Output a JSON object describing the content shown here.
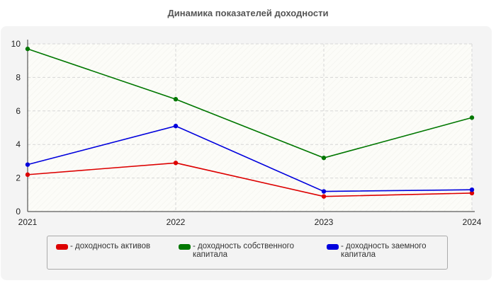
{
  "chart_data": {
    "type": "line",
    "title": "Динамика показателей доходности",
    "xlabel": "",
    "ylabel": "",
    "categories": [
      "2021",
      "2022",
      "2023",
      "2024"
    ],
    "ylim": [
      0,
      10
    ],
    "yticks": [
      "0",
      "2",
      "4",
      "6",
      "8",
      "10"
    ],
    "grid": true,
    "legend_position": "bottom",
    "series": [
      {
        "name": "- доходность активов",
        "color": "#dd0000",
        "values": [
          2.2,
          2.9,
          0.9,
          1.1
        ]
      },
      {
        "name": "- доходность собственного капитала",
        "color": "#007700",
        "values": [
          9.7,
          6.7,
          3.2,
          5.6
        ]
      },
      {
        "name": "- доходность заемного капитала",
        "color": "#0000dd",
        "values": [
          2.8,
          5.1,
          1.2,
          1.3
        ]
      }
    ]
  }
}
